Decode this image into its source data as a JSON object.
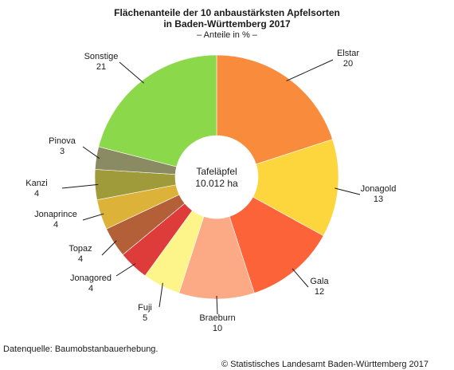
{
  "title_line1": "Flächenanteile der 10 anbaustärksten Apfelsorten",
  "title_line2": "in Baden-Württemberg 2017",
  "subtitle": "– Anteile in % –",
  "center_label_line1": "Tafeläpfel",
  "center_label_line2": "10.012 ha",
  "source": "Datenquelle: Baumobstanbauerhebung.",
  "copyright": "© Statistisches Landesamt Baden-Württemberg 2017",
  "chart_data": {
    "type": "pie",
    "donut": true,
    "title": "Flächenanteile der 10 anbaustärksten Apfelsorten in Baden-Württemberg 2017",
    "subtitle": "– Anteile in % –",
    "unit": "%",
    "slices": [
      {
        "label": "Elstar",
        "value": 20,
        "color": "#f98b3d"
      },
      {
        "label": "Jonagold",
        "value": 13,
        "color": "#fdd63d"
      },
      {
        "label": "Gala",
        "value": 12,
        "color": "#fc6339"
      },
      {
        "label": "Braeburn",
        "value": 10,
        "color": "#fcaa86"
      },
      {
        "label": "Fuji",
        "value": 5,
        "color": "#fdf58a"
      },
      {
        "label": "Jonagored",
        "value": 4,
        "color": "#dd3c3b"
      },
      {
        "label": "Topaz",
        "value": 4,
        "color": "#b35f37"
      },
      {
        "label": "Jonaprince",
        "value": 4,
        "color": "#dcb338"
      },
      {
        "label": "Kanzi",
        "value": 4,
        "color": "#9f9a3a"
      },
      {
        "label": "Pinova",
        "value": 3,
        "color": "#8b8b63"
      },
      {
        "label": "Sonstige",
        "value": 21,
        "color": "#8bd84a"
      }
    ]
  }
}
